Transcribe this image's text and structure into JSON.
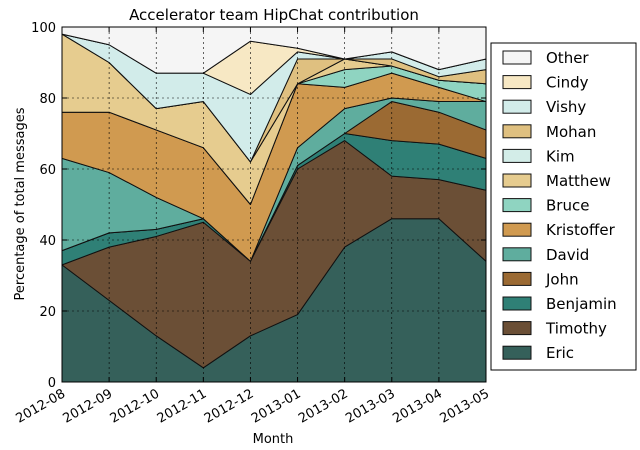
{
  "chart_data": {
    "type": "area",
    "stacked": true,
    "title": "Accelerator team HipChat contribution",
    "xlabel": "Month",
    "ylabel": "Percentage of total messages",
    "ylim": [
      0,
      100
    ],
    "yticks": [
      0,
      20,
      40,
      60,
      80,
      100
    ],
    "x": [
      "2012-08",
      "2012-09",
      "2012-10",
      "2012-11",
      "2012-12",
      "2013-01",
      "2013-02",
      "2013-03",
      "2013-04",
      "2013-05"
    ],
    "grid": true,
    "legend_position": "right",
    "series": [
      {
        "name": "Eric",
        "color": "#35605a",
        "values": [
          33,
          23,
          13,
          4,
          13,
          19,
          38,
          46,
          46,
          34
        ]
      },
      {
        "name": "Timothy",
        "color": "#6b4f36",
        "values": [
          0,
          15,
          28,
          41,
          21,
          41,
          30,
          12,
          11,
          20
        ]
      },
      {
        "name": "Benjamin",
        "color": "#2f8076",
        "values": [
          4,
          4,
          2,
          1,
          0,
          1,
          2,
          10,
          10,
          9
        ]
      },
      {
        "name": "John",
        "color": "#9b6a33",
        "values": [
          0,
          0,
          0,
          0,
          0,
          0,
          0,
          11,
          9,
          8
        ]
      },
      {
        "name": "David",
        "color": "#5fad9e",
        "values": [
          26,
          17,
          9,
          0,
          0,
          5,
          7,
          1,
          3,
          8
        ]
      },
      {
        "name": "Kristoffer",
        "color": "#d09a50",
        "values": [
          13,
          17,
          19,
          20,
          16,
          18,
          6,
          7,
          4,
          0
        ]
      },
      {
        "name": "Bruce",
        "color": "#8fd4c1",
        "values": [
          0,
          0,
          0,
          0,
          0,
          0,
          5,
          2,
          2,
          5
        ]
      },
      {
        "name": "Matthew",
        "color": "#e6cc8f",
        "values": [
          22,
          14,
          6,
          13,
          12,
          0,
          3,
          0,
          0,
          0
        ]
      },
      {
        "name": "Kim",
        "color": "#d3ede8",
        "values": [
          0,
          0,
          0,
          0,
          0,
          0,
          0,
          0,
          0,
          0
        ]
      },
      {
        "name": "Mohan",
        "color": "#dfc080",
        "values": [
          0,
          0,
          0,
          0,
          0,
          7,
          0,
          2,
          1,
          4
        ]
      },
      {
        "name": "Vishy",
        "color": "#d2ecea",
        "values": [
          0,
          5,
          10,
          8,
          19,
          2,
          0,
          2,
          2,
          3
        ]
      },
      {
        "name": "Cindy",
        "color": "#f7e8c4",
        "values": [
          0,
          0,
          0,
          0,
          15,
          1,
          0,
          0,
          0,
          0
        ]
      },
      {
        "name": "Other",
        "color": "#f5f5f5",
        "values": [
          2,
          5,
          13,
          13,
          4,
          6,
          9,
          7,
          12,
          9
        ]
      }
    ]
  }
}
